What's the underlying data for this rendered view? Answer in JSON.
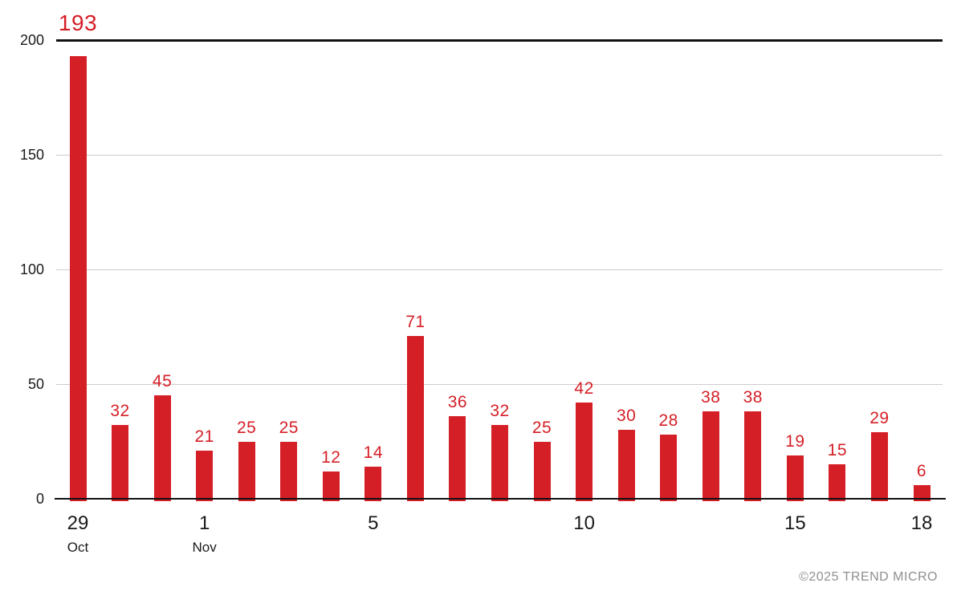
{
  "chart_data": {
    "type": "bar",
    "title": "",
    "categories": [
      "Oct 29",
      "Oct 30",
      "Oct 31",
      "Nov 1",
      "Nov 2",
      "Nov 3",
      "Nov 4",
      "Nov 5",
      "Nov 6",
      "Nov 7",
      "Nov 8",
      "Nov 9",
      "Nov 10",
      "Nov 11",
      "Nov 12",
      "Nov 13",
      "Nov 14",
      "Nov 15",
      "Nov 16",
      "Nov 17",
      "Nov 18"
    ],
    "values": [
      193,
      32,
      45,
      21,
      25,
      25,
      12,
      14,
      71,
      36,
      32,
      25,
      42,
      30,
      28,
      38,
      38,
      19,
      15,
      29,
      6
    ],
    "data_labels": [
      "193",
      "32",
      "45",
      "21",
      "25",
      "25",
      "12",
      "14",
      "71",
      "36",
      "32",
      "25",
      "42",
      "30",
      "28",
      "38",
      "38",
      "19",
      "15",
      "29",
      "6"
    ],
    "ylim": [
      0,
      200
    ],
    "yticks": [
      0,
      50,
      100,
      150,
      200
    ],
    "ytick_labels": [
      "0",
      "50",
      "100",
      "150",
      "200"
    ],
    "xticks": [
      {
        "index": 0,
        "day": "29",
        "month": "Oct"
      },
      {
        "index": 3,
        "day": "1",
        "month": "Nov"
      },
      {
        "index": 7,
        "day": "5",
        "month": ""
      },
      {
        "index": 12,
        "day": "10",
        "month": ""
      },
      {
        "index": 17,
        "day": "15",
        "month": ""
      },
      {
        "index": 20,
        "day": "18",
        "month": ""
      }
    ],
    "grid": "horizontal",
    "legend": "none",
    "colors": {
      "bar": "#d51f26",
      "bar_label": "#d51f26",
      "gridline": "#cdcdcd",
      "axis": "#111111",
      "tick_text": "#1a1a1a",
      "footer_text": "#8d8f92"
    }
  },
  "footer": {
    "copyright": "©2025 TREND MICRO"
  }
}
